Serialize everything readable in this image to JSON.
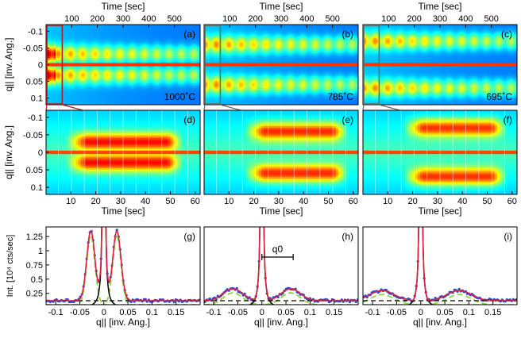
{
  "chart_data": [
    {
      "type": "heatmap",
      "panel": "a",
      "panel_label": "(a)",
      "temperature_label": "1000˚C",
      "top_axis_label": "Time [sec]",
      "top_ticks": [
        100,
        200,
        300,
        400,
        500
      ],
      "top_xlim": [
        0,
        600
      ],
      "ylabel": "q||  [inv. Ang.]",
      "yticks": [
        "-0.1",
        "-0.05",
        "0",
        "0.05",
        "0.1"
      ],
      "ylim": [
        -0.12,
        0.12
      ],
      "zoom_box_color": "#b02020",
      "peak_q": 0.032
    },
    {
      "type": "heatmap",
      "panel": "b",
      "panel_label": "(b)",
      "temperature_label": "785˚C",
      "top_axis_label": "Time [sec]",
      "top_ticks": [
        100,
        200,
        300,
        400,
        500
      ],
      "top_xlim": [
        0,
        600
      ],
      "ylim": [
        -0.12,
        0.12
      ],
      "zoom_box_color": "#607060",
      "peak_q": 0.06
    },
    {
      "type": "heatmap",
      "panel": "c",
      "panel_label": "(c)",
      "temperature_label": "695˚C",
      "top_axis_label": "Time [sec]",
      "top_ticks": [
        100,
        200,
        300,
        400,
        500
      ],
      "top_xlim": [
        0,
        600
      ],
      "ylim": [
        -0.12,
        0.12
      ],
      "zoom_box_color": "#607060",
      "peak_q": 0.07
    },
    {
      "type": "heatmap",
      "panel": "d",
      "panel_label": "(d)",
      "xlabel": "Time [sec]",
      "xticks": [
        10,
        20,
        30,
        40,
        50,
        60
      ],
      "xlim": [
        0,
        62
      ],
      "ylabel": "q||  [inv. Ang.]",
      "yticks": [
        "-0.1",
        "-0.05",
        "0",
        "0.05",
        "0.1"
      ],
      "ylim": [
        -0.12,
        0.12
      ],
      "peak_q": 0.03,
      "peak_time_range": [
        8,
        55
      ]
    },
    {
      "type": "heatmap",
      "panel": "e",
      "panel_label": "(e)",
      "xlabel": "Time [sec]",
      "xticks": [
        10,
        20,
        30,
        40,
        50,
        60
      ],
      "xlim": [
        0,
        62
      ],
      "ylim": [
        -0.12,
        0.12
      ],
      "peak_q": 0.06,
      "peak_time_range": [
        16,
        58
      ]
    },
    {
      "type": "heatmap",
      "panel": "f",
      "panel_label": "(f)",
      "xlabel": "Time [sec]",
      "xticks": [
        10,
        20,
        30,
        40,
        50,
        60
      ],
      "xlim": [
        0,
        62
      ],
      "ylim": [
        -0.12,
        0.12
      ],
      "peak_q": 0.07,
      "peak_time_range": [
        16,
        58
      ]
    },
    {
      "type": "line",
      "panel": "g",
      "panel_label": "(g)",
      "xlabel": "q||  [inv. Ang.]",
      "ylabel": "Int. [10⁴ cts/sec]",
      "xticks": [
        "-0.1",
        "-0.05",
        "0",
        "0.05",
        "0.1",
        "0.15"
      ],
      "yticks": [
        "0.25",
        "0.5",
        "0.75",
        "1",
        "1.25"
      ],
      "xlim": [
        -0.12,
        0.2
      ],
      "ylim": [
        0.05,
        1.42
      ],
      "background": 0.12,
      "peak_position": 0.027,
      "peak_height": 1.35,
      "peak_width": 0.012,
      "specular_height": 8
    },
    {
      "type": "line",
      "panel": "h",
      "panel_label": "(h)",
      "annotation": "q0",
      "annotation_range": [
        0,
        0.065
      ],
      "xticks": [
        "-0.1",
        "-0.05",
        "0",
        "0.05",
        "0.1",
        "0.15"
      ],
      "xlim": [
        -0.12,
        0.2
      ],
      "ylim": [
        0.05,
        1.42
      ],
      "background": 0.12,
      "peak_position": 0.06,
      "peak_height": 0.33,
      "peak_width": 0.028,
      "specular_height": 8
    },
    {
      "type": "line",
      "panel": "i",
      "panel_label": "(i)",
      "xticks": [
        "-0.1",
        "-0.05",
        "0",
        "0.05",
        "0.1",
        "0.15"
      ],
      "xlim": [
        -0.12,
        0.2
      ],
      "ylim": [
        0.05,
        1.42
      ],
      "background": 0.12,
      "peak_position": 0.08,
      "peak_height": 0.3,
      "peak_width": 0.035,
      "specular_height": 8
    }
  ]
}
